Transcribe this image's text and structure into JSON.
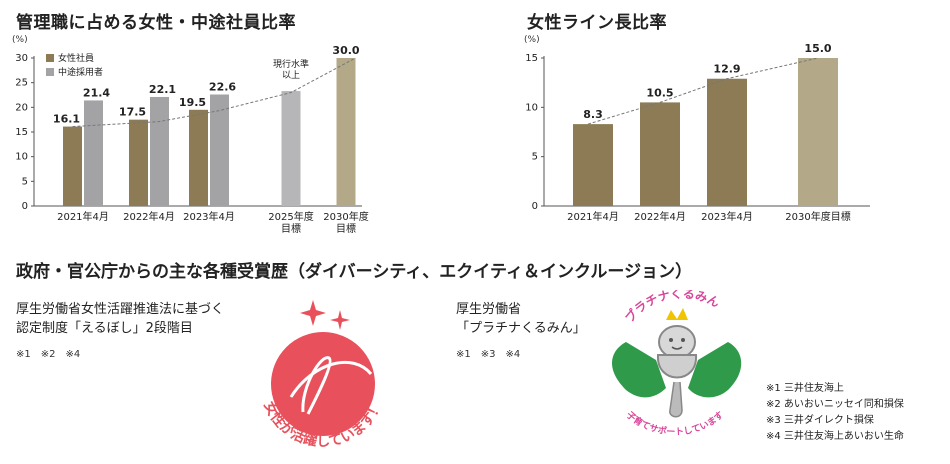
{
  "chart_data": [
    {
      "type": "bar",
      "title": "管理職に占める女性・中途社員比率",
      "unit": "(%)",
      "ylim": [
        0,
        30
      ],
      "yticks": [
        "0",
        "5",
        "10",
        "15",
        "20",
        "25",
        "30"
      ],
      "categories": [
        "2021年4月",
        "2022年4月",
        "2023年4月",
        "2025年度\n目標",
        "2030年度\n目標"
      ],
      "series": [
        {
          "name": "女性社員",
          "color": "#8c7b55",
          "values": [
            16.1,
            17.5,
            19.5,
            null,
            30.0
          ],
          "labels": [
            "16.1",
            "17.5",
            "19.5",
            "",
            "30.0"
          ]
        },
        {
          "name": "中途採用者",
          "color": "#a3a3a6",
          "values": [
            21.4,
            22.1,
            22.6,
            23.3,
            null
          ],
          "labels": [
            "21.4",
            "22.1",
            "22.6",
            "",
            ""
          ]
        }
      ],
      "target_color": "#b3a888",
      "annotation": "現行水準\n以上"
    },
    {
      "type": "bar",
      "title": "女性ライン長比率",
      "unit": "(%)",
      "ylim": [
        0,
        15
      ],
      "yticks": [
        "0",
        "5",
        "10",
        "15"
      ],
      "categories": [
        "2021年4月",
        "2022年4月",
        "2023年4月",
        "2030年度目標"
      ],
      "values": [
        8.3,
        10.5,
        12.9,
        15.0
      ],
      "labels": [
        "8.3",
        "10.5",
        "12.9",
        "15.0"
      ],
      "color": "#8c7b55",
      "target_color": "#b3a888"
    }
  ],
  "awards": {
    "title": "政府・官公庁からの主な各種受賞歴（ダイバーシティ、エクイティ＆インクルージョン）",
    "left": {
      "line1": "厚生労働省女性活躍推進法に基づく",
      "line2": "認定制度「えるぼし」2段階目",
      "refs": "※1　※2　※4",
      "logo_text": "女性が活躍しています！"
    },
    "right": {
      "line1": "厚生労働省",
      "line2": "「プラチナくるみん」",
      "refs": "※1　※3　※4",
      "logo_top": "プラチナくるみん",
      "logo_bottom": "子育てサポートしています"
    },
    "footnotes": [
      "※1 三井住友海上",
      "※2 あいおいニッセイ同和損保",
      "※3 三井ダイレクト損保",
      "※4 三井住友海上あいおい生命"
    ]
  },
  "colors": {
    "eruboshi_red": "#e8505b",
    "kurumin_green": "#2e9a4a",
    "dashed": "#777777"
  }
}
